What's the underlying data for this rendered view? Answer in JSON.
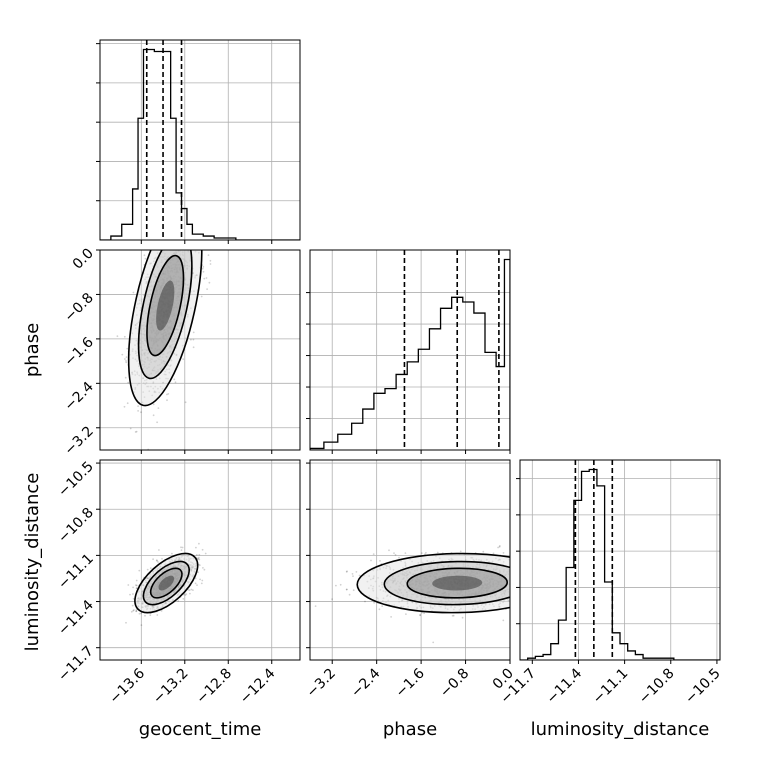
{
  "chart_data": {
    "type": "corner",
    "title": "",
    "parameters": [
      "geocent_time",
      "phase",
      "luminosity_distance"
    ],
    "axis_ranges": {
      "geocent_time": [
        -13.98,
        -12.14
      ],
      "phase": [
        -3.6,
        0.0
      ],
      "luminosity_distance": [
        -11.78,
        -10.48
      ]
    },
    "ticks": {
      "geocent_time": [
        -13.6,
        -13.2,
        -12.8,
        -12.4
      ],
      "phase": [
        -3.2,
        -2.4,
        -1.6,
        -0.8,
        0.0
      ],
      "luminosity_distance": [
        -11.7,
        -11.4,
        -11.1,
        -10.8,
        -10.5
      ]
    },
    "tick_labels": {
      "geocent_time": [
        "−13.6",
        "−13.2",
        "−12.8",
        "−12.4"
      ],
      "phase": [
        "−3.2",
        "−2.4",
        "−1.6",
        "−0.8",
        "0.0"
      ],
      "luminosity_distance": [
        "−11.7",
        "−11.4",
        "−11.1",
        "−10.8",
        "−10.5"
      ]
    },
    "quantiles": {
      "geocent_time": [
        -13.55,
        -13.4,
        -13.23
      ],
      "phase": [
        -1.9,
        -0.95,
        -0.2
      ],
      "luminosity_distance": [
        -11.42,
        -11.3,
        -11.18
      ]
    },
    "histograms": {
      "geocent_time": {
        "edges": [
          -13.98,
          -13.88,
          -13.78,
          -13.68,
          -13.63,
          -13.58,
          -13.48,
          -13.33,
          -13.28,
          -13.23,
          -13.18,
          -13.13,
          -13.03,
          -12.93,
          -12.83,
          -12.73,
          -12.14
        ],
        "counts": [
          0,
          2,
          8,
          26,
          62,
          97,
          96,
          62,
          24,
          16,
          8,
          3,
          2,
          1,
          1,
          0
        ]
      },
      "phase": {
        "edges": [
          -3.6,
          -3.35,
          -3.1,
          -2.85,
          -2.65,
          -2.45,
          -2.25,
          -2.05,
          -1.85,
          -1.65,
          -1.45,
          -1.25,
          -1.05,
          -0.85,
          -0.65,
          -0.45,
          -0.25,
          -0.1,
          0.0
        ],
        "counts": [
          1,
          5,
          10,
          17,
          26,
          36,
          39,
          48,
          56,
          64,
          77,
          90,
          97,
          94,
          87,
          62,
          53,
          121
        ]
      },
      "luminosity_distance": {
        "edges": [
          -11.78,
          -11.73,
          -11.68,
          -11.63,
          -11.58,
          -11.53,
          -11.48,
          -11.43,
          -11.38,
          -11.33,
          -11.28,
          -11.23,
          -11.18,
          -11.13,
          -11.08,
          -11.03,
          -10.98,
          -10.93,
          -10.88,
          -10.83,
          -10.78,
          -10.48
        ],
        "counts": [
          0,
          1,
          2,
          3,
          9,
          22,
          51,
          88,
          104,
          105,
          96,
          43,
          15,
          9,
          5,
          3,
          1,
          1,
          1,
          1,
          0
        ]
      }
    },
    "posteriors_2d": [
      {
        "x": "geocent_time",
        "y": "phase",
        "mean": [
          -13.38,
          -1.0
        ],
        "std": [
          0.14,
          0.75
        ],
        "rho": 0.55
      },
      {
        "x": "geocent_time",
        "y": "luminosity_distance",
        "mean": [
          -13.37,
          -11.28
        ],
        "std": [
          0.12,
          0.08
        ],
        "rho": 0.6
      },
      {
        "x": "phase",
        "y": "luminosity_distance",
        "mean": [
          -0.95,
          -11.28
        ],
        "std": [
          0.75,
          0.08
        ],
        "rho": 0.05
      }
    ],
    "grid": true,
    "legend": "none"
  }
}
